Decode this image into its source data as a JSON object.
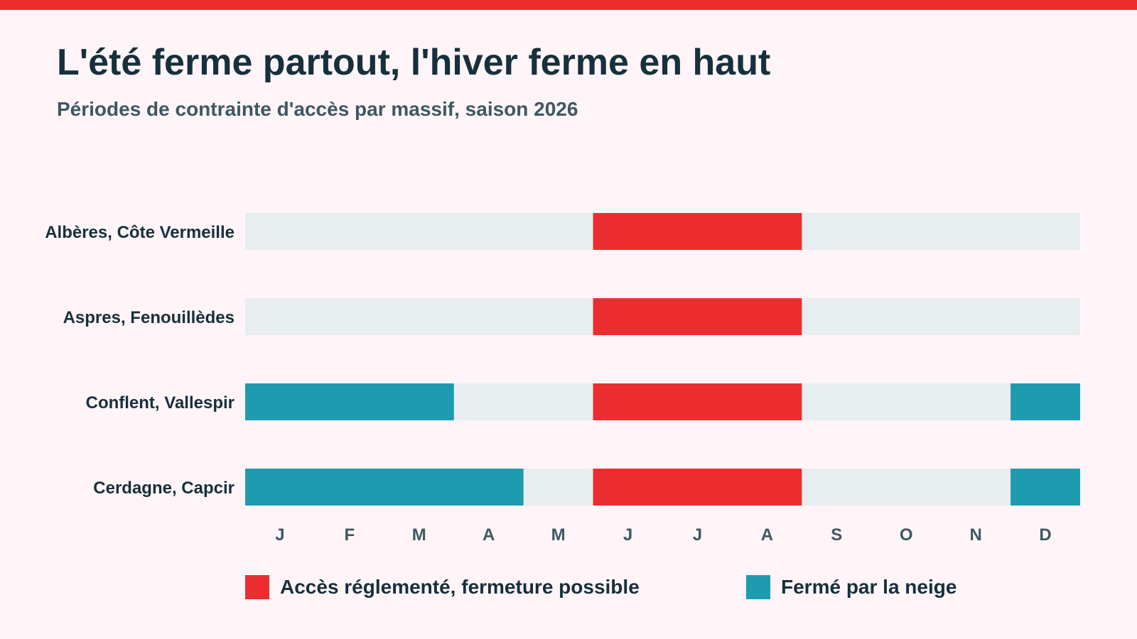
{
  "header": {
    "title": "L'été ferme partout, l'hiver ferme en haut",
    "subtitle": "Périodes de contrainte d'accès par massif, saison 2026"
  },
  "colors": {
    "accent": "#ec2d2f",
    "summer": "#ec2d2f",
    "snow": "#1f9bb0",
    "track": "#e8edef",
    "text": "#16303c",
    "muted": "#3d5862",
    "background": "#fff4f7"
  },
  "legend": [
    {
      "key": "summer",
      "label": "Accès réglementé, fermeture possible"
    },
    {
      "key": "snow",
      "label": "Fermé par la neige"
    }
  ],
  "chart_data": {
    "type": "bar",
    "orientation": "horizontal-timeline",
    "title": "L'été ferme partout, l'hiver ferme en haut",
    "subtitle": "Périodes de contrainte d'accès par massif, saison 2026",
    "x_unit": "month",
    "xlim": [
      0,
      12
    ],
    "x_ticks": [
      "J",
      "F",
      "M",
      "A",
      "M",
      "J",
      "J",
      "A",
      "S",
      "O",
      "N",
      "D"
    ],
    "legend_position": "bottom",
    "grid": false,
    "rows": [
      {
        "label": "Albères, Côte Vermeille",
        "periods": [
          {
            "type": "summer",
            "start": "2026-06-01",
            "end": "2026-09-01"
          }
        ]
      },
      {
        "label": "Aspres, Fenouillèdes",
        "periods": [
          {
            "type": "summer",
            "start": "2026-06-01",
            "end": "2026-09-01"
          }
        ]
      },
      {
        "label": "Conflent, Vallespir",
        "periods": [
          {
            "type": "snow",
            "start": "2026-01-01",
            "end": "2026-04-01"
          },
          {
            "type": "summer",
            "start": "2026-06-01",
            "end": "2026-09-01"
          },
          {
            "type": "snow",
            "start": "2026-12-01",
            "end": "2026-12-31"
          }
        ]
      },
      {
        "label": "Cerdagne, Capcir",
        "periods": [
          {
            "type": "snow",
            "start": "2026-01-01",
            "end": "2026-05-01"
          },
          {
            "type": "summer",
            "start": "2026-06-01",
            "end": "2026-09-01"
          },
          {
            "type": "snow",
            "start": "2026-12-01",
            "end": "2026-12-31"
          }
        ]
      }
    ]
  }
}
